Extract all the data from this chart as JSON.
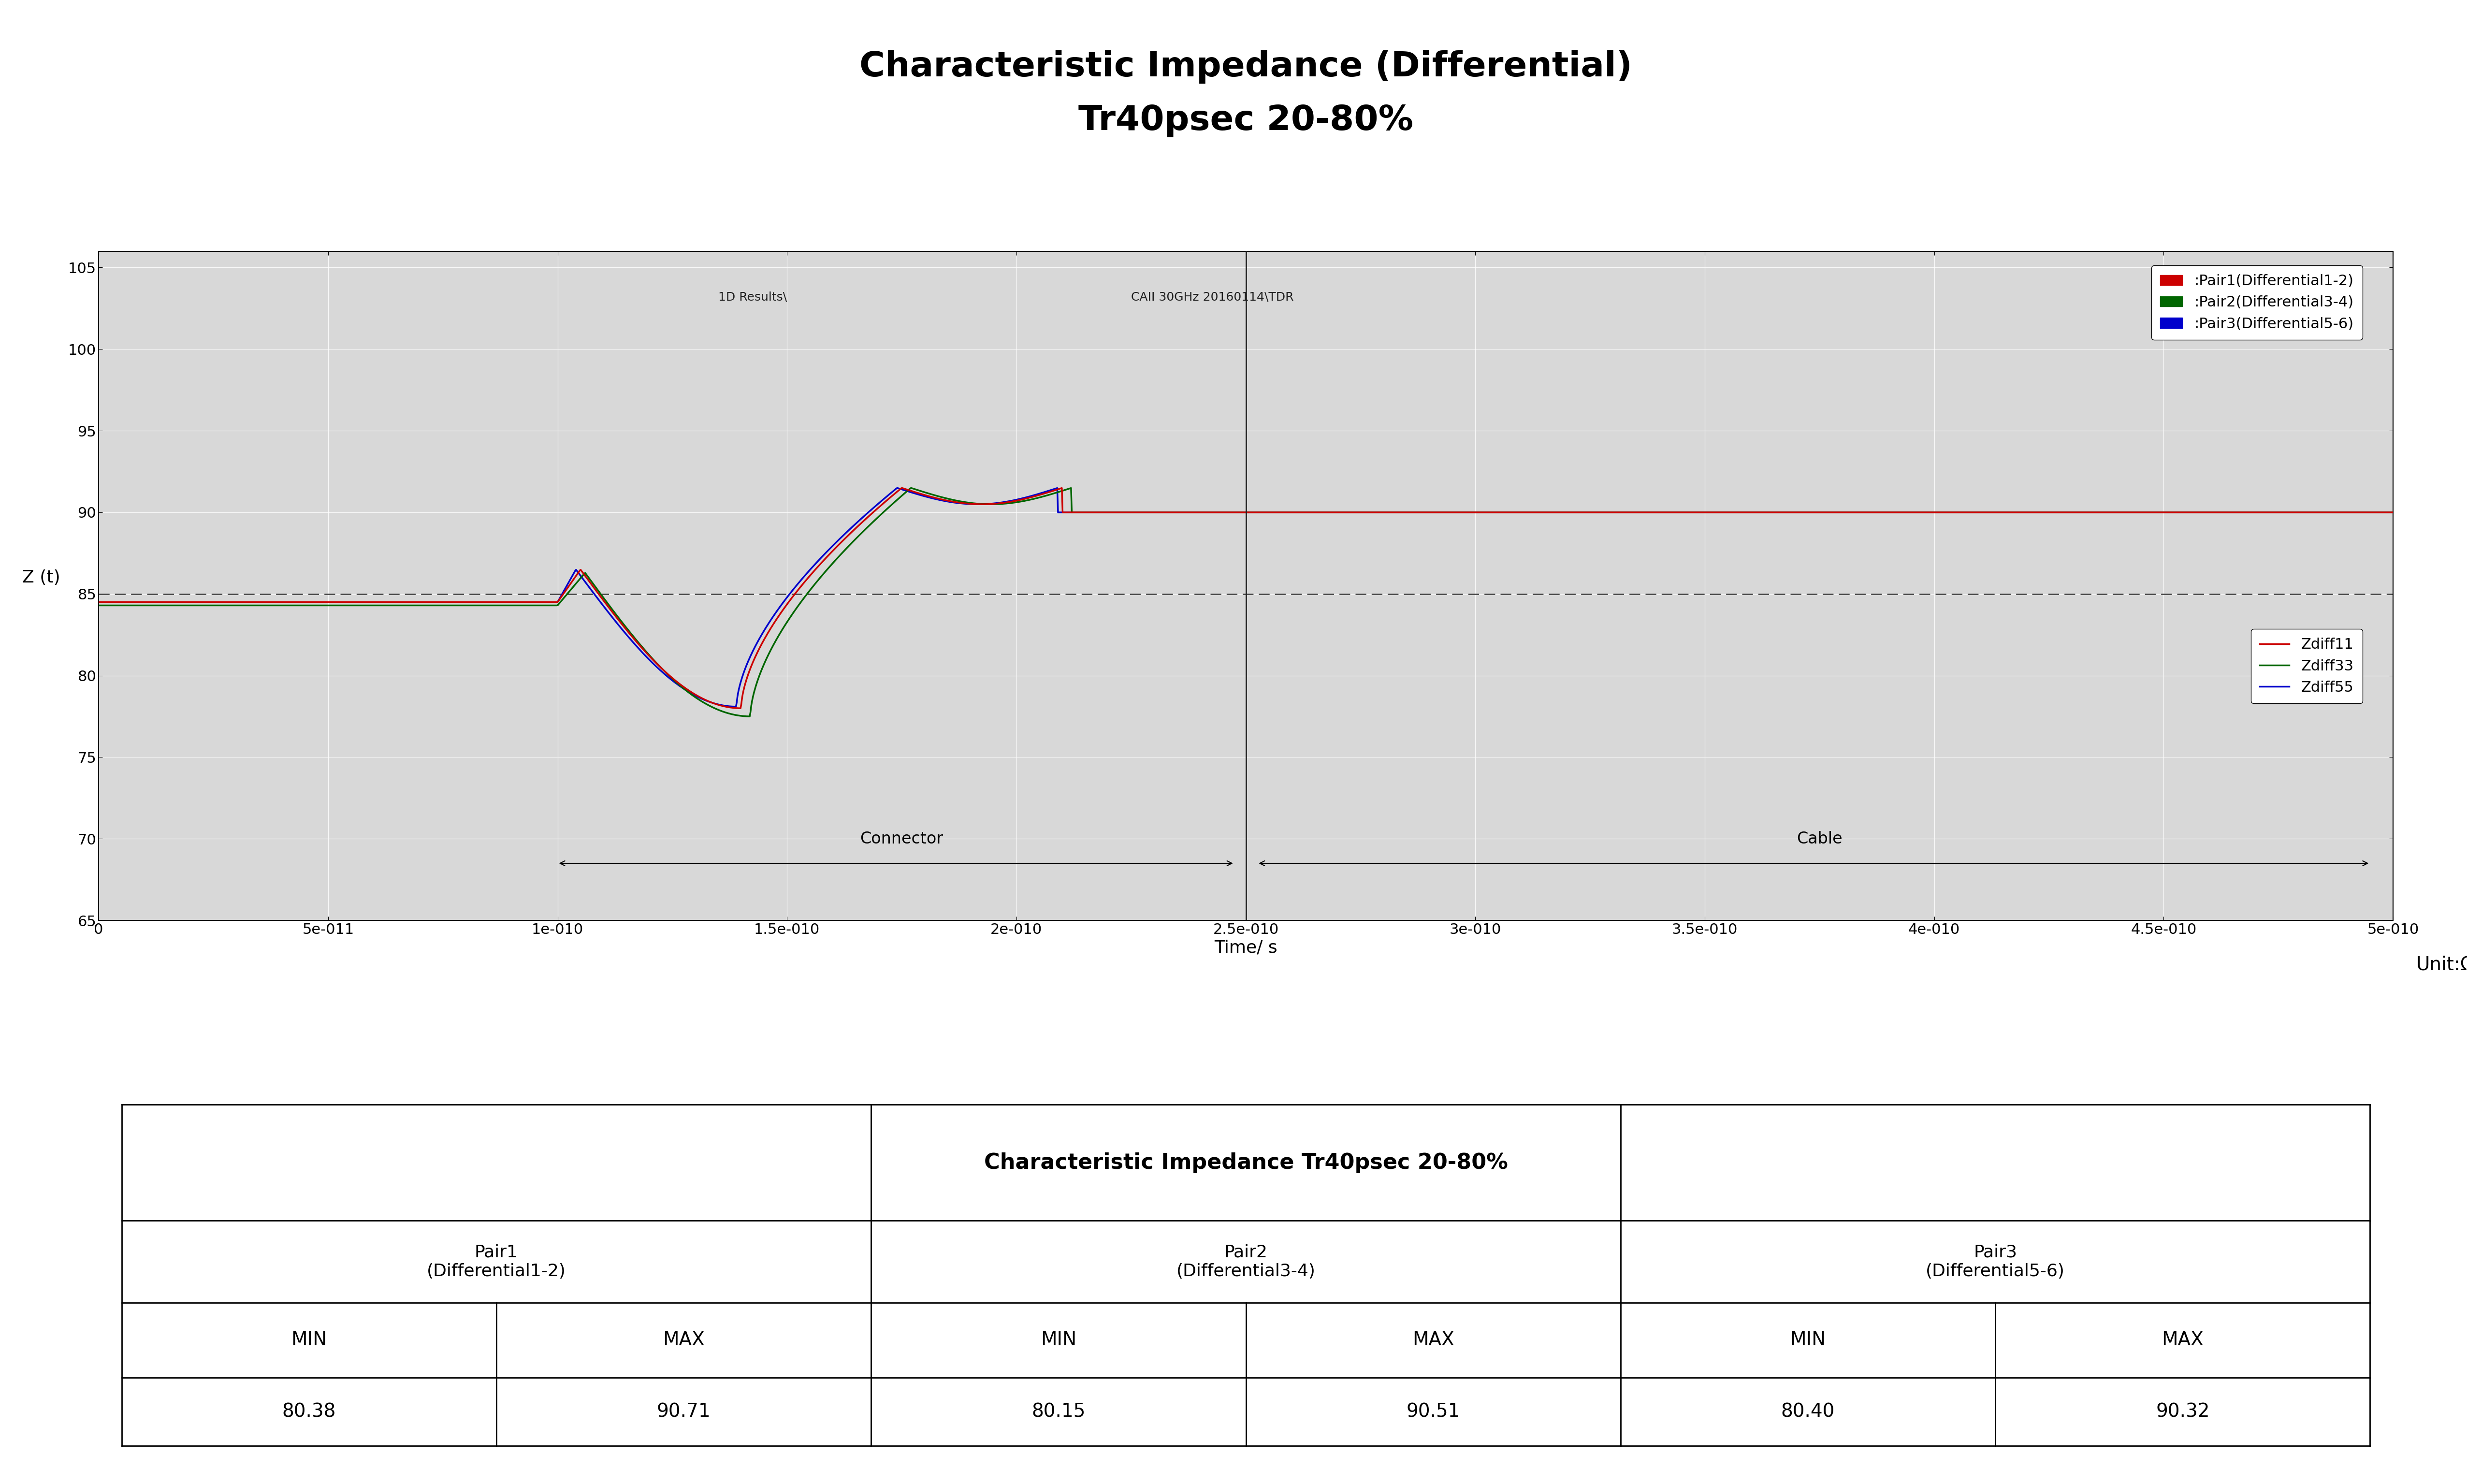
{
  "title_line1": "Characteristic Impedance (Differential)",
  "title_line2": "Tr40psec 20-80%",
  "title_fontsize": 52,
  "plot_bg_color": "#d8d8d8",
  "figure_bg_color": "#ffffff",
  "xlabel": "Time/ s",
  "ylabel": "Z (t)",
  "xlabel_fontsize": 26,
  "ylabel_fontsize": 26,
  "xlim_min": 0,
  "xlim_max": 5e-10,
  "ylim_min": 65,
  "ylim_max": 106,
  "xticks": [
    0,
    5e-11,
    1e-10,
    1.5e-10,
    2e-10,
    2.5e-10,
    3e-10,
    3.5e-10,
    4e-10,
    4.5e-10,
    5e-10
  ],
  "xticklabels": [
    "0",
    "5e-011",
    "1e-010",
    "1.5e-010",
    "2e-010",
    "2.5e-010",
    "3e-010",
    "3.5e-010",
    "4e-010",
    "4.5e-010",
    "5e-010"
  ],
  "yticks": [
    65,
    70,
    75,
    80,
    85,
    90,
    95,
    100,
    105
  ],
  "watermark_text1": "1D Results\\",
  "watermark_text2": "CAII 30GHz 20160114\\TDR",
  "dashed_line_y": 85,
  "vertical_line_x": 2.5e-10,
  "connector_label": "Connector",
  "cable_label": "Cable",
  "annotation_fontsize": 24,
  "legend1_labels": [
    ":Pair1(Differential1-2)",
    ":Pair2(Differential3-4)",
    ":Pair3(Differential5-6)"
  ],
  "legend1_colors": [
    "#cc0000",
    "#006600",
    "#0000cc"
  ],
  "legend2_labels": [
    "Zdiff11",
    "Zdiff33",
    "Zdiff55"
  ],
  "legend2_colors": [
    "#cc0000",
    "#006600",
    "#0000cc"
  ],
  "pair1_color": "#cc0000",
  "pair2_color": "#006600",
  "pair3_color": "#0000cc",
  "table_title": "Characteristic Impedance Tr40psec 20-80%",
  "table_pair_headers": [
    "Pair1\n(Differential1-2)",
    "Pair2\n(Differential3-4)",
    "Pair3\n(Differential5-6)"
  ],
  "table_subheaders": [
    "MIN",
    "MAX",
    "MIN",
    "MAX",
    "MIN",
    "MAX"
  ],
  "table_values": [
    "80.38",
    "90.71",
    "80.15",
    "90.51",
    "80.40",
    "90.32"
  ],
  "unit_text": "Unit:Ω",
  "unit_fontsize": 28,
  "tick_fontsize": 22,
  "legend_fontsize": 22
}
